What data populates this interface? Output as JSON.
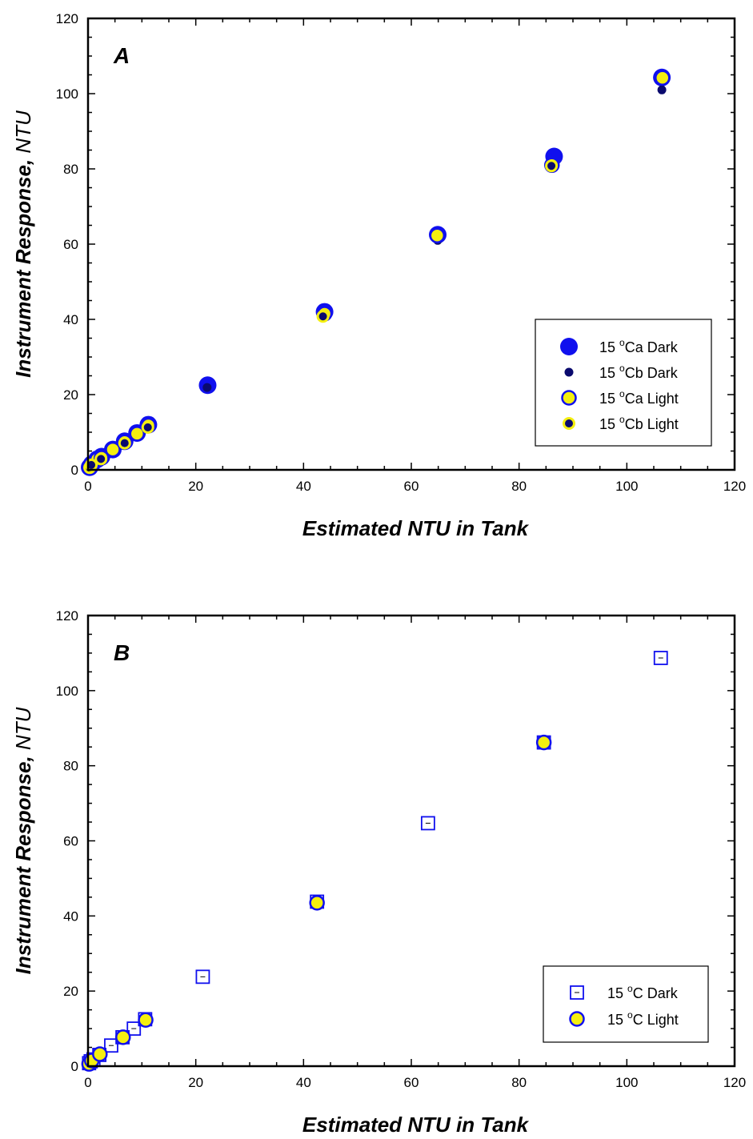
{
  "chart_data": [
    {
      "type": "scatter",
      "panel": "A",
      "xlabel": "Estimated NTU in Tank",
      "ylabel_main": "Instrument Response, ",
      "ylabel_unit": "NTU",
      "xlim": [
        0,
        120
      ],
      "ylim": [
        0,
        120
      ],
      "xticks": [
        0,
        20,
        40,
        60,
        80,
        100,
        120
      ],
      "yticks": [
        0,
        20,
        40,
        60,
        80,
        100,
        120
      ],
      "legend_position": "lower-right",
      "series": [
        {
          "name_prefix": "15 ",
          "name_sup": "o",
          "name_suffix": "Ca Dark",
          "marker": "big-blue-circle",
          "points": [
            [
              0.3,
              0.7
            ],
            [
              0.7,
              1.5
            ],
            [
              1.7,
              2.8
            ],
            [
              2.5,
              3.5
            ],
            [
              4.6,
              5.4
            ],
            [
              6.8,
              7.6
            ],
            [
              9.1,
              9.8
            ],
            [
              11.2,
              12.0
            ],
            [
              22.2,
              22.5
            ],
            [
              43.9,
              42.0
            ],
            [
              64.9,
              62.5
            ],
            [
              86.5,
              83.3
            ],
            [
              106.5,
              104.3
            ]
          ]
        },
        {
          "name_prefix": "15 ",
          "name_sup": "o",
          "name_suffix": "Cb Dark",
          "marker": "small-navy-dot",
          "points": [
            [
              0.3,
              0.6
            ],
            [
              0.6,
              1.3
            ],
            [
              1.5,
              2.2
            ],
            [
              2.4,
              2.9
            ],
            [
              4.5,
              5.0
            ],
            [
              6.8,
              7.1
            ],
            [
              9.0,
              9.3
            ],
            [
              11.1,
              11.3
            ],
            [
              22.1,
              21.9
            ],
            [
              43.6,
              40.8
            ],
            [
              64.9,
              61.0
            ],
            [
              86.0,
              80.8
            ],
            [
              106.5,
              101.0
            ]
          ]
        },
        {
          "name_prefix": "15 ",
          "name_sup": "o",
          "name_suffix": "Ca Light",
          "marker": "yellow-circle-blue-edge",
          "points": [
            [
              0.3,
              0.7
            ],
            [
              0.7,
              1.5
            ],
            [
              1.7,
              2.8
            ],
            [
              2.5,
              3.2
            ],
            [
              4.6,
              5.4
            ],
            [
              6.8,
              7.4
            ],
            [
              9.1,
              9.6
            ],
            [
              11.2,
              11.8
            ],
            [
              43.9,
              41.5
            ],
            [
              64.8,
              62.3
            ],
            [
              86.1,
              81.0
            ],
            [
              106.6,
              104.2
            ]
          ]
        },
        {
          "name_prefix": "15 ",
          "name_sup": "o",
          "name_suffix": "Cb Light",
          "marker": "yellow-with-navy-core",
          "points": [
            [
              0.3,
              0.6
            ],
            [
              0.6,
              1.3
            ],
            [
              2.4,
              2.9
            ],
            [
              6.8,
              7.1
            ],
            [
              11.1,
              11.3
            ],
            [
              43.6,
              40.8
            ],
            [
              86.0,
              80.8
            ]
          ]
        }
      ]
    },
    {
      "type": "scatter",
      "panel": "B",
      "xlabel": "Estimated NTU in Tank",
      "ylabel_main": "Instrument Response, ",
      "ylabel_unit": "NTU",
      "xlim": [
        0,
        120
      ],
      "ylim": [
        0,
        120
      ],
      "xticks": [
        0,
        20,
        40,
        60,
        80,
        100,
        120
      ],
      "yticks": [
        0,
        20,
        40,
        60,
        80,
        100,
        120
      ],
      "legend_position": "lower-right",
      "series": [
        {
          "name_prefix": "15 ",
          "name_sup": "o",
          "name_suffix": "C Dark",
          "marker": "open-blue-square",
          "points": [
            [
              0.2,
              0.8
            ],
            [
              0.5,
              1.3
            ],
            [
              1.0,
              1.8
            ],
            [
              2.1,
              3.0
            ],
            [
              4.3,
              5.5
            ],
            [
              6.4,
              7.7
            ],
            [
              8.5,
              10.0
            ],
            [
              10.6,
              12.5
            ],
            [
              21.3,
              23.8
            ],
            [
              42.5,
              43.8
            ],
            [
              63.1,
              64.7
            ],
            [
              84.6,
              86.2
            ],
            [
              106.3,
              108.7
            ]
          ]
        },
        {
          "name_prefix": "15 ",
          "name_sup": "o",
          "name_suffix": "C Light",
          "marker": "yellow-circle-blue-edge",
          "points": [
            [
              0.2,
              0.6
            ],
            [
              0.7,
              1.5
            ],
            [
              2.2,
              3.2
            ],
            [
              6.5,
              7.7
            ],
            [
              10.7,
              12.3
            ],
            [
              42.5,
              43.5
            ],
            [
              84.6,
              86.2
            ]
          ]
        }
      ]
    }
  ]
}
